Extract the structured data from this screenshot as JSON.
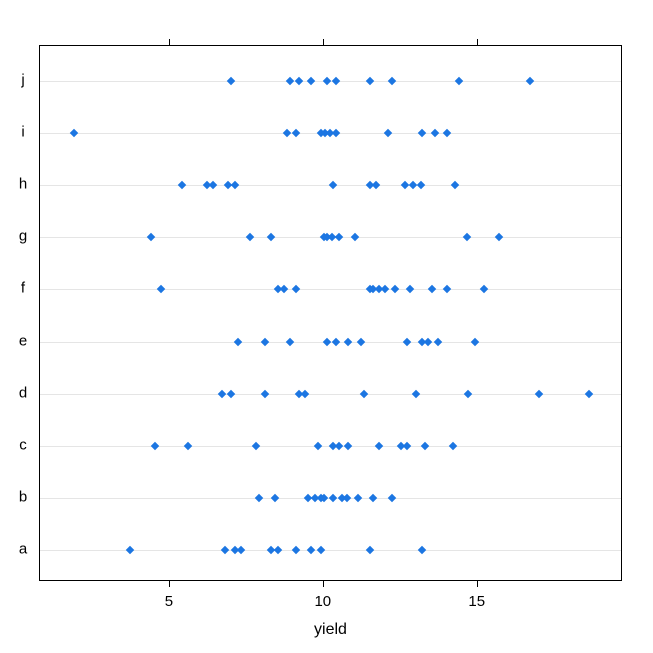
{
  "chart_data": {
    "type": "scatter",
    "subtype": "dotplot",
    "title": "",
    "xlabel": "yield",
    "ylabel": "",
    "xlim": [
      0.78,
      19.72
    ],
    "x_ticks": [
      5,
      10,
      15
    ],
    "grid": "horizontal",
    "legend": "none",
    "categories_top_to_bottom": [
      "j",
      "i",
      "h",
      "g",
      "f",
      "e",
      "d",
      "c",
      "b",
      "a"
    ],
    "rows": [
      {
        "category": "j",
        "values": [
          7.0,
          8.9,
          9.2,
          9.6,
          10.1,
          10.4,
          11.5,
          12.2,
          14.4,
          16.7
        ]
      },
      {
        "category": "i",
        "values": [
          1.9,
          8.8,
          9.1,
          9.9,
          10.05,
          10.2,
          10.4,
          12.1,
          13.2,
          13.6,
          14.0
        ]
      },
      {
        "category": "h",
        "values": [
          5.4,
          6.2,
          6.4,
          6.9,
          7.1,
          10.3,
          11.5,
          11.7,
          12.65,
          12.9,
          13.15,
          14.25
        ]
      },
      {
        "category": "g",
        "values": [
          4.4,
          7.6,
          8.3,
          10.0,
          10.1,
          10.25,
          10.5,
          11.0,
          14.65,
          15.7
        ]
      },
      {
        "category": "f",
        "values": [
          4.7,
          8.5,
          8.7,
          9.1,
          11.5,
          11.6,
          11.8,
          12.0,
          12.3,
          12.8,
          13.5,
          14.0,
          15.2
        ]
      },
      {
        "category": "e",
        "values": [
          7.2,
          8.1,
          8.9,
          10.1,
          10.4,
          10.8,
          11.2,
          12.7,
          13.2,
          13.4,
          13.7,
          14.9
        ]
      },
      {
        "category": "d",
        "values": [
          6.7,
          7.0,
          8.1,
          9.2,
          9.4,
          11.3,
          13.0,
          14.7,
          17.0,
          18.6
        ]
      },
      {
        "category": "c",
        "values": [
          4.5,
          5.6,
          7.8,
          9.8,
          10.3,
          10.5,
          10.8,
          11.8,
          12.5,
          12.7,
          13.3,
          14.2
        ]
      },
      {
        "category": "b",
        "values": [
          7.9,
          8.4,
          9.5,
          9.7,
          9.9,
          10.0,
          10.3,
          10.6,
          10.75,
          11.1,
          11.6,
          12.2
        ]
      },
      {
        "category": "a",
        "values": [
          3.7,
          6.8,
          7.1,
          7.3,
          8.3,
          8.5,
          9.1,
          9.6,
          9.9,
          11.5,
          13.2
        ]
      }
    ],
    "colors": {
      "point": "#1c76e2",
      "gridline": "#e5e5e5",
      "box_border": "#000000",
      "text": "#000000",
      "background": "#ffffff"
    }
  }
}
